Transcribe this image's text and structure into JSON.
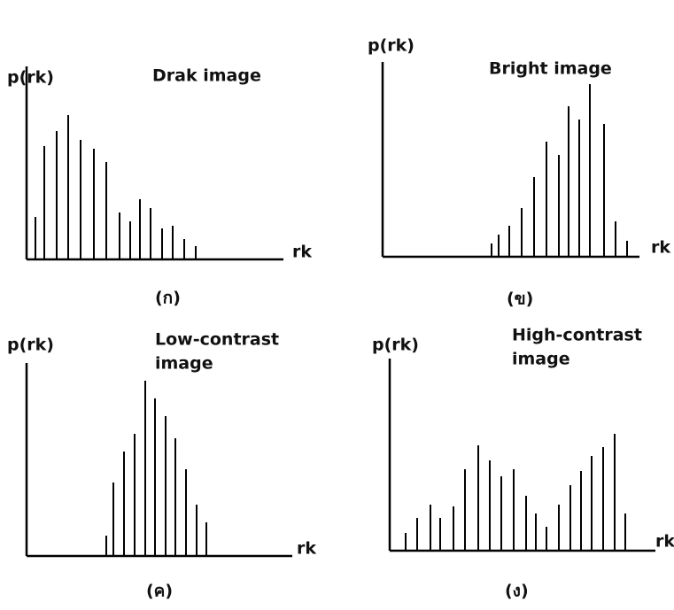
{
  "chart_data": [
    {
      "type": "bar",
      "title": [
        "Drak image"
      ],
      "y_label": "p(rk)",
      "x_label": "rk",
      "caption": "(ก)",
      "color": "#000000",
      "x": [
        10,
        20,
        34,
        47,
        61,
        76,
        90,
        105,
        117,
        128,
        140,
        153,
        165,
        178,
        191
      ],
      "values": [
        48,
        128,
        145,
        163,
        135,
        125,
        110,
        53,
        43,
        68,
        58,
        35,
        38,
        23,
        15
      ],
      "xlim": [
        0,
        290
      ],
      "ylim": [
        0,
        218
      ]
    },
    {
      "type": "bar",
      "title": [
        "Bright image"
      ],
      "y_label": "p(rk)",
      "x_label": "rk",
      "caption": "(ข)",
      "color": "#000000",
      "x": [
        123,
        131,
        143,
        157,
        171,
        185,
        199,
        210,
        222,
        234,
        250,
        263,
        276
      ],
      "values": [
        15,
        25,
        35,
        55,
        90,
        130,
        115,
        170,
        155,
        195,
        150,
        40,
        18
      ],
      "xlim": [
        0,
        290
      ],
      "ylim": [
        0,
        220
      ]
    },
    {
      "type": "bar",
      "title": [
        "Low-contrast",
        "image"
      ],
      "y_label": "p(rk)",
      "x_label": "rk",
      "caption": "(ค)",
      "color": "#000000",
      "x": [
        90,
        98,
        110,
        122,
        134,
        145,
        157,
        168,
        180,
        192,
        203
      ],
      "values": [
        23,
        83,
        118,
        138,
        198,
        178,
        158,
        133,
        98,
        58,
        38
      ],
      "xlim": [
        0,
        300
      ],
      "ylim": [
        0,
        218
      ]
    },
    {
      "type": "bar",
      "title": [
        "High-contrast",
        "image"
      ],
      "y_label": "p(rk)",
      "x_label": "rk",
      "caption": "(ง)",
      "color": "#000000",
      "x": [
        18,
        31,
        46,
        57,
        72,
        85,
        100,
        113,
        126,
        140,
        154,
        165,
        177,
        191,
        204,
        216,
        228,
        241,
        254,
        266
      ],
      "values": [
        20,
        37,
        52,
        37,
        50,
        92,
        119,
        102,
        84,
        92,
        62,
        42,
        27,
        52,
        74,
        90,
        107,
        117,
        132,
        42
      ],
      "xlim": [
        0,
        300
      ],
      "ylim": [
        0,
        217
      ]
    }
  ]
}
